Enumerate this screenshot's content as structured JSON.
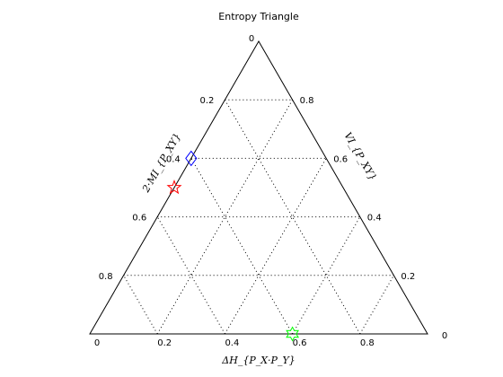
{
  "chart_data": {
    "type": "scatter",
    "subtype": "ternary",
    "title": "Entropy Triangle",
    "axes": {
      "bottom": {
        "label": "ΔH_{P_X·P_Y}",
        "ticks": [
          "0",
          "0.2",
          "0.4",
          "0.6",
          "0.8"
        ],
        "end_label": "0"
      },
      "left": {
        "label": "2·MI_{P_XY}",
        "ticks": [
          "0.2",
          "0.4",
          "0.6",
          "0.8"
        ],
        "apex_label": "0"
      },
      "right": {
        "label": "VI_{P_XY}",
        "ticks": [
          "0.8",
          "0.6",
          "0.4",
          "0.2"
        ]
      }
    },
    "grid": true,
    "grid_step": 0.2,
    "points": [
      {
        "marker": "diamond",
        "color": "#0000ff",
        "dH": 0.0,
        "mi2": 0.6,
        "vi": 0.4
      },
      {
        "marker": "pentagram",
        "color": "#ff0000",
        "dH": 0.0,
        "mi2": 0.5,
        "vi": 0.5
      },
      {
        "marker": "hexagram",
        "color": "#00ff00",
        "dH": 0.6,
        "mi2": 0.0,
        "vi": 0.4
      }
    ]
  }
}
